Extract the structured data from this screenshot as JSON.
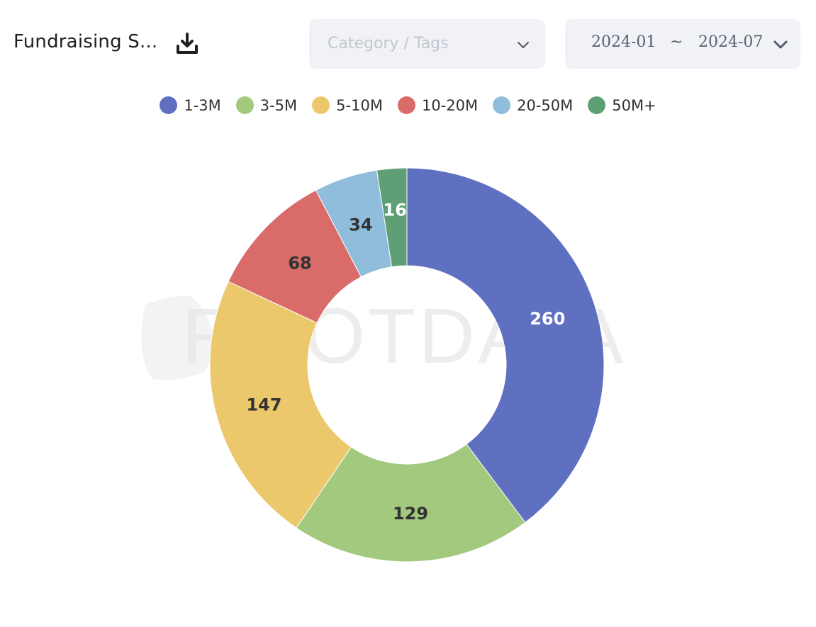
{
  "header": {
    "title": "Fundraising S...",
    "download_icon": "download-icon"
  },
  "filters": {
    "category_placeholder": "Category / Tags",
    "date_start": "2024-01",
    "date_separator": "~",
    "date_end": "2024-07"
  },
  "watermark": "ROOTDATA",
  "chart_data": {
    "type": "pie",
    "donut": true,
    "legend_position": "top-center",
    "categories": [
      "1-3M",
      "3-5M",
      "5-10M",
      "10-20M",
      "20-50M",
      "50M+"
    ],
    "values": [
      260,
      129,
      147,
      68,
      34,
      16
    ],
    "colors": [
      "#5f70c0",
      "#a2c97d",
      "#ecc86d",
      "#d96b68",
      "#8fbddb",
      "#5f9f75"
    ],
    "label_colors": [
      "#ffffff",
      "#333333",
      "#333333",
      "#333333",
      "#333333",
      "#ffffff"
    ]
  }
}
